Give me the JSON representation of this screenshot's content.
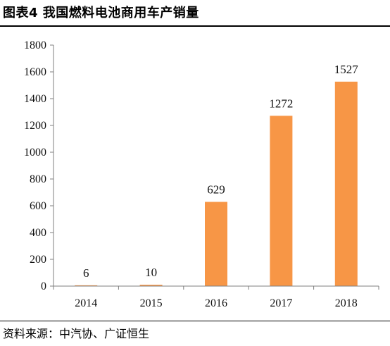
{
  "figure": {
    "title": "图表4 我国燃料电池商用车产销量",
    "source": "资料来源：中汽协、广证恒生"
  },
  "chart_data": {
    "type": "bar",
    "categories": [
      "2014",
      "2015",
      "2016",
      "2017",
      "2018"
    ],
    "values": [
      6,
      10,
      629,
      1272,
      1527
    ],
    "data_labels": [
      "6",
      "10",
      "629",
      "1272",
      "1527"
    ],
    "title": "",
    "xlabel": "",
    "ylabel": "",
    "ylim": [
      0,
      1800
    ],
    "yticks": [
      0,
      200,
      400,
      600,
      800,
      1000,
      1200,
      1400,
      1600,
      1800
    ],
    "grid": false,
    "legend": "none",
    "bar_color": "#F79646"
  }
}
